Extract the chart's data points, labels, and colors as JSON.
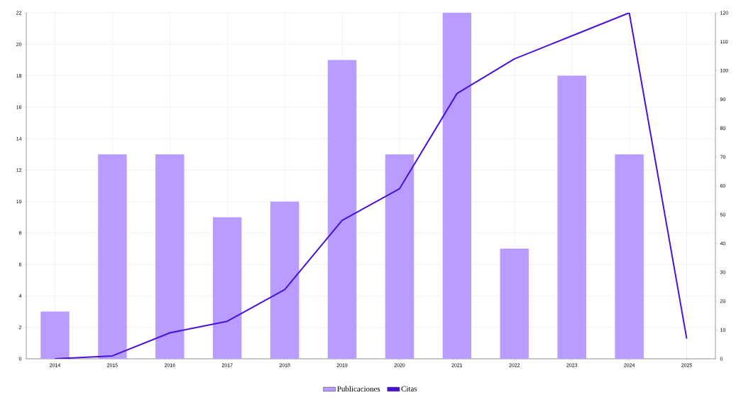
{
  "chart_data": {
    "type": "bar",
    "categories": [
      "2014",
      "2015",
      "2016",
      "2017",
      "2018",
      "2019",
      "2020",
      "2021",
      "2022",
      "2023",
      "2024",
      "2025"
    ],
    "series": [
      {
        "name": "Publicaciones",
        "color": "#b89cff",
        "values": [
          3,
          13,
          13,
          9,
          10,
          19,
          13,
          22,
          7,
          18,
          13,
          null
        ]
      },
      {
        "name": "Citas",
        "type": "line",
        "axis": "y2",
        "color": "#4a10d8",
        "values": [
          0,
          1,
          9,
          13,
          24,
          48,
          59,
          92,
          104,
          112,
          120,
          7
        ]
      }
    ],
    "ylim": [
      0,
      22
    ],
    "yticks": [
      0,
      2,
      4,
      6,
      8,
      10,
      12,
      14,
      16,
      18,
      20,
      22
    ],
    "y2lim": [
      0,
      120
    ],
    "y2ticks": [
      0,
      10,
      20,
      30,
      40,
      50,
      60,
      70,
      80,
      90,
      100,
      110,
      120
    ],
    "grid": true,
    "legend": "bottom",
    "marker": "none",
    "line_style": "solid"
  }
}
